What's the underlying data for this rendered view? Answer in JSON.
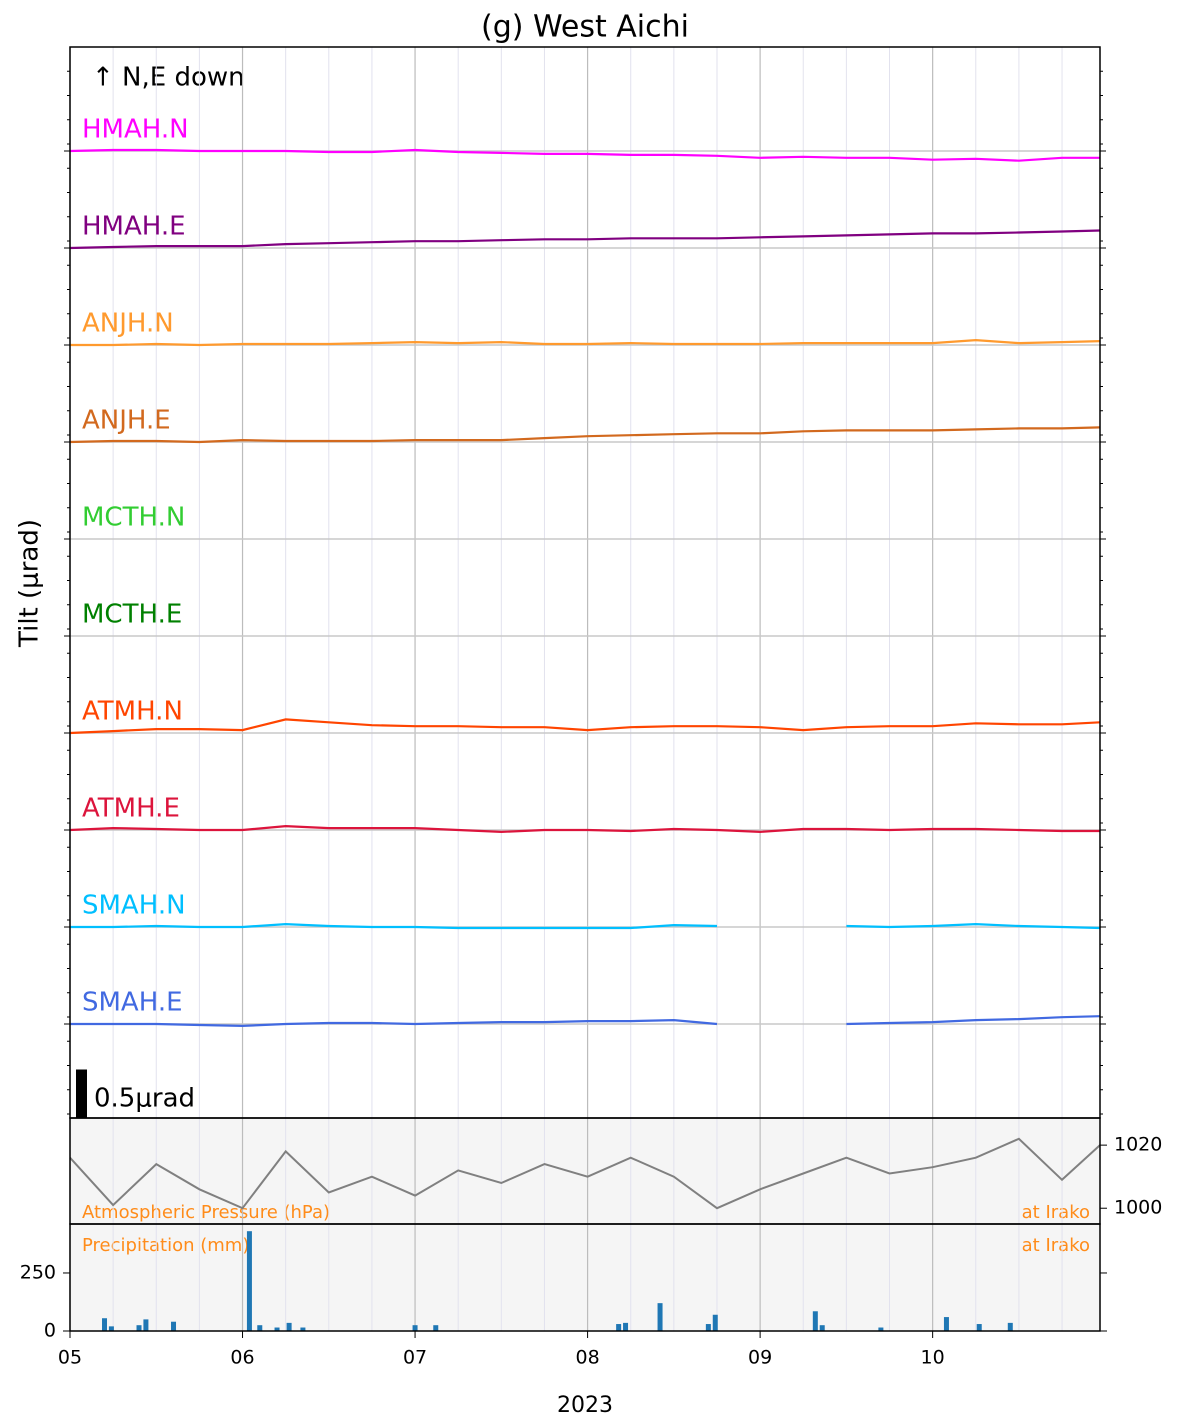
{
  "chart_data": [
    {
      "type": "line",
      "title": "(g) West Aichi",
      "annotation": "↑ N,E down",
      "ylabel": "Tilt (μrad)",
      "xlim": [
        5,
        10.97
      ],
      "x": [
        5.0,
        5.25,
        5.5,
        5.75,
        6.0,
        6.25,
        6.5,
        6.75,
        7.0,
        7.25,
        7.5,
        7.75,
        8.0,
        8.25,
        8.5,
        8.75,
        9.0,
        9.25,
        9.5,
        9.75,
        10.0,
        10.25,
        10.5,
        10.75,
        10.97
      ],
      "series": [
        {
          "name": "HMAH.N",
          "color": "#ff00ff",
          "values": [
            0,
            0.01,
            0.01,
            0,
            0,
            0,
            -0.01,
            -0.01,
            0.01,
            -0.01,
            -0.02,
            -0.03,
            -0.03,
            -0.04,
            -0.04,
            -0.05,
            -0.07,
            -0.06,
            -0.07,
            -0.07,
            -0.09,
            -0.08,
            -0.1,
            -0.07,
            -0.07
          ]
        },
        {
          "name": "HMAH.E",
          "color": "#800080",
          "values": [
            0,
            0.01,
            0.02,
            0.02,
            0.02,
            0.04,
            0.05,
            0.06,
            0.07,
            0.07,
            0.08,
            0.09,
            0.09,
            0.1,
            0.1,
            0.1,
            0.11,
            0.12,
            0.13,
            0.14,
            0.15,
            0.15,
            0.16,
            0.17,
            0.18
          ]
        },
        {
          "name": "ANJH.N",
          "color": "#ff9a2e",
          "values": [
            0,
            0,
            0.01,
            0,
            0.01,
            0.01,
            0.01,
            0.02,
            0.03,
            0.02,
            0.03,
            0.01,
            0.01,
            0.02,
            0.01,
            0.01,
            0.01,
            0.02,
            0.02,
            0.02,
            0.02,
            0.05,
            0.02,
            0.03,
            0.04
          ]
        },
        {
          "name": "ANJH.E",
          "color": "#d2691e",
          "values": [
            0,
            0.01,
            0.01,
            0,
            0.02,
            0.01,
            0.01,
            0.01,
            0.02,
            0.02,
            0.02,
            0.04,
            0.06,
            0.07,
            0.08,
            0.09,
            0.09,
            0.11,
            0.12,
            0.12,
            0.12,
            0.13,
            0.14,
            0.14,
            0.15
          ]
        },
        {
          "name": "MCTH.N",
          "color": "#32cd32",
          "values": [
            null,
            null,
            null,
            null,
            null,
            null,
            null,
            null,
            null,
            null,
            null,
            null,
            null,
            null,
            null,
            null,
            null,
            null,
            null,
            null,
            null,
            null,
            null,
            null,
            null
          ]
        },
        {
          "name": "MCTH.E",
          "color": "#008000",
          "values": [
            null,
            null,
            null,
            null,
            null,
            null,
            null,
            null,
            null,
            null,
            null,
            null,
            null,
            null,
            null,
            null,
            null,
            null,
            null,
            null,
            null,
            null,
            null,
            null,
            null
          ]
        },
        {
          "name": "ATMH.N",
          "color": "#ff4500",
          "values": [
            0,
            0.02,
            0.04,
            0.04,
            0.03,
            0.14,
            0.11,
            0.08,
            0.07,
            0.07,
            0.06,
            0.06,
            0.03,
            0.06,
            0.07,
            0.07,
            0.06,
            0.03,
            0.06,
            0.07,
            0.07,
            0.1,
            0.09,
            0.09,
            0.11
          ]
        },
        {
          "name": "ATMH.E",
          "color": "#dc143c",
          "values": [
            0,
            0.02,
            0.01,
            0,
            0,
            0.04,
            0.02,
            0.02,
            0.02,
            0,
            -0.02,
            0,
            0,
            -0.01,
            0.01,
            0,
            -0.02,
            0.01,
            0.01,
            0,
            0.01,
            0.01,
            0,
            -0.01,
            -0.01
          ]
        },
        {
          "name": "SMAH.N",
          "color": "#00bfff",
          "values": [
            0,
            0,
            0.01,
            0,
            0,
            0.03,
            0.01,
            0,
            0,
            -0.01,
            -0.01,
            -0.01,
            -0.01,
            -0.01,
            0.02,
            0.01,
            null,
            null,
            0.01,
            0,
            0.01,
            0.03,
            0.01,
            0,
            -0.01
          ]
        },
        {
          "name": "SMAH.E",
          "color": "#4169e1",
          "values": [
            0,
            0,
            0,
            -0.01,
            -0.02,
            0,
            0.01,
            0.01,
            0,
            0.01,
            0.02,
            0.02,
            0.03,
            0.03,
            0.04,
            0,
            null,
            null,
            0,
            0.01,
            0.02,
            0.04,
            0.05,
            0.07,
            0.08
          ]
        }
      ],
      "scale_bar": {
        "value": 0.5,
        "label": "0.5μrad"
      }
    },
    {
      "type": "line",
      "label": "Atmospheric Pressure (hPa)",
      "location": "at Irako",
      "color": "#808080",
      "xlim": [
        5,
        10.97
      ],
      "x": [
        5.0,
        5.25,
        5.5,
        5.75,
        6.0,
        6.25,
        6.5,
        6.75,
        7.0,
        7.25,
        7.5,
        7.75,
        8.0,
        8.25,
        8.5,
        8.75,
        9.0,
        9.25,
        9.5,
        9.75,
        10.0,
        10.25,
        10.5,
        10.75,
        10.97
      ],
      "values": [
        1016,
        1001,
        1014,
        1006,
        1000,
        1018,
        1005,
        1010,
        1004,
        1012,
        1008,
        1014,
        1010,
        1016,
        1010,
        1000,
        1006,
        1011,
        1016,
        1011,
        1013,
        1016,
        1022,
        1009,
        1020
      ],
      "y2lim": [
        995,
        1028.6
      ],
      "y2ticks": [
        1000,
        1020
      ]
    },
    {
      "type": "bar",
      "label": "Precipitation (mm)",
      "location": "at Irako",
      "color": "#1f77b4",
      "xlabel": "2023",
      "xlim": [
        5,
        10.97
      ],
      "xticks": [
        {
          "value": 5,
          "label": "05"
        },
        {
          "value": 6,
          "label": "06"
        },
        {
          "value": 7,
          "label": "07"
        },
        {
          "value": 8,
          "label": "08"
        },
        {
          "value": 9,
          "label": "09"
        },
        {
          "value": 10,
          "label": "10"
        }
      ],
      "x": [
        5.2,
        5.24,
        5.4,
        5.44,
        5.6,
        6.04,
        6.1,
        6.2,
        6.27,
        6.35,
        7.0,
        7.12,
        8.18,
        8.22,
        8.42,
        8.7,
        8.74,
        9.32,
        9.36,
        9.7,
        10.08,
        10.27,
        10.45
      ],
      "values": [
        55,
        20,
        25,
        50,
        40,
        430,
        25,
        15,
        35,
        15,
        25,
        25,
        30,
        35,
        120,
        30,
        70,
        85,
        25,
        15,
        60,
        30,
        35
      ],
      "ylim": [
        0,
        461
      ],
      "yticks": [
        0,
        250
      ]
    }
  ]
}
